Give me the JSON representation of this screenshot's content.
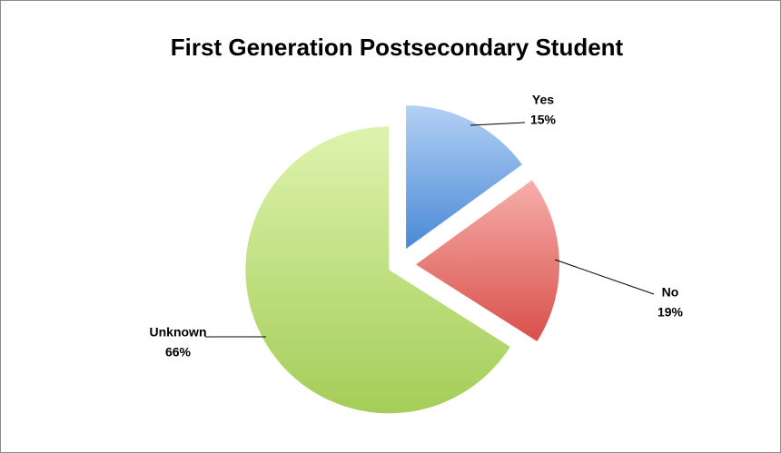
{
  "chart_data": {
    "type": "pie",
    "title": "First Generation Postsecondary Student",
    "categories": [
      "Yes",
      "No",
      "Unknown"
    ],
    "values": [
      15,
      19,
      66
    ],
    "value_labels": [
      "15%",
      "19%",
      "66%"
    ],
    "colors": [
      "#5b9bd5",
      "#e0605c",
      "#a9d15e"
    ]
  }
}
